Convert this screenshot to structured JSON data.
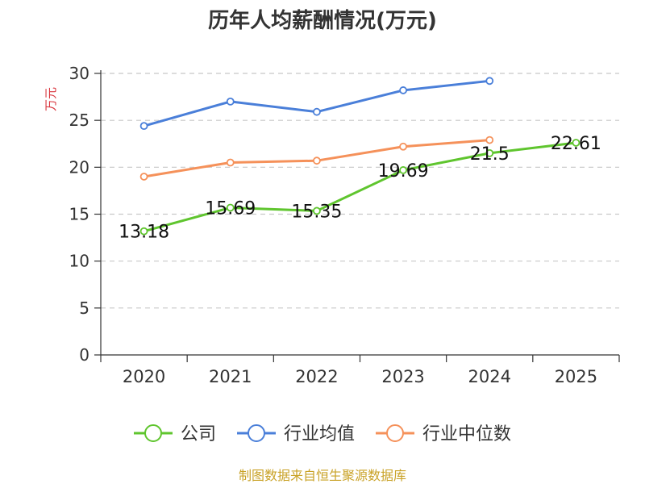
{
  "chart_data": {
    "type": "line",
    "title": "历年人均薪酬情况(万元)",
    "ylabel": "万元",
    "xlabel": "",
    "categories": [
      "2020",
      "2021",
      "2022",
      "2023",
      "2024",
      "2025"
    ],
    "y_ticks": [
      "0",
      "5",
      "10",
      "15",
      "20",
      "25",
      "30"
    ],
    "ylim": [
      0,
      30
    ],
    "grid": true,
    "legend_position": "bottom",
    "series": [
      {
        "name": "公司",
        "color": "#5fc52e",
        "values": [
          13.18,
          15.69,
          15.35,
          19.69,
          21.5,
          22.61
        ],
        "labels": [
          "13.18",
          "15.69",
          "15.35",
          "19.69",
          "21.5",
          "22.61"
        ]
      },
      {
        "name": "行业均值",
        "color": "#4a7fd9",
        "values": [
          24.4,
          27.0,
          25.9,
          28.2,
          29.2,
          null
        ]
      },
      {
        "name": "行业中位数",
        "color": "#f5915a",
        "values": [
          19.0,
          20.5,
          20.7,
          22.2,
          22.9,
          null
        ]
      }
    ]
  },
  "source": "制图数据来自恒生聚源数据库"
}
